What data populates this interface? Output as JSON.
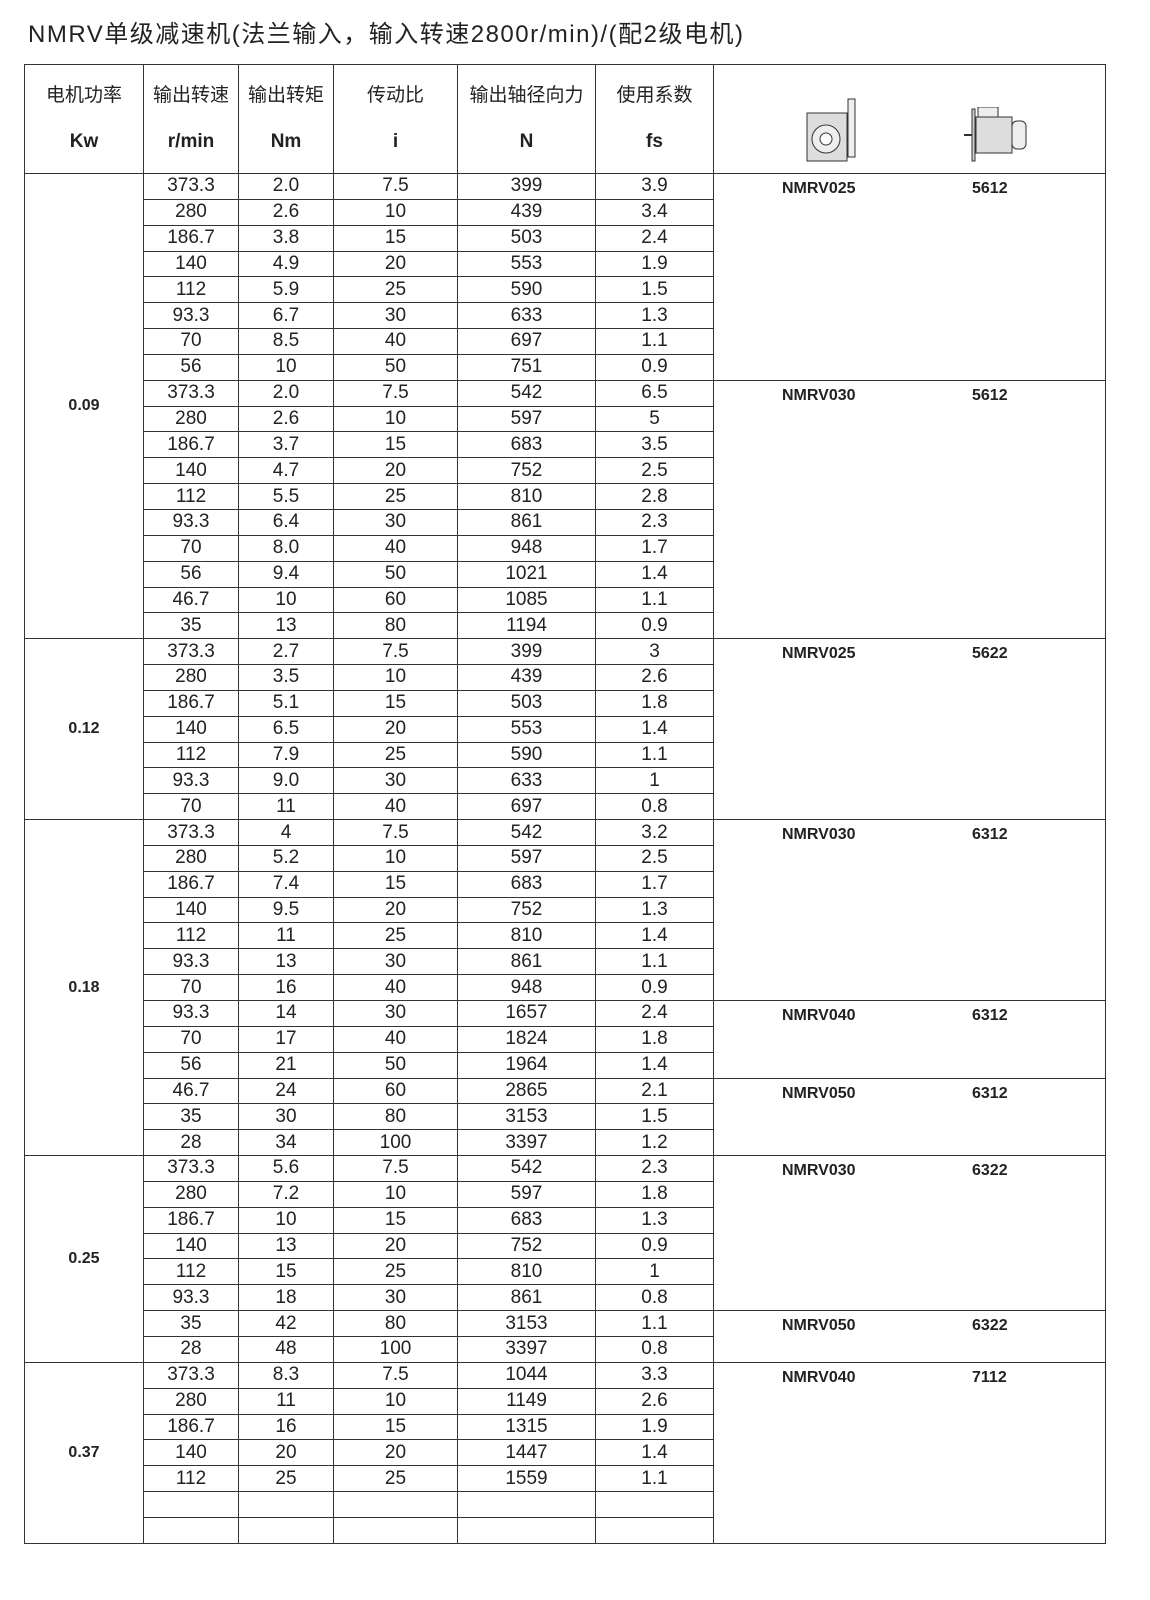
{
  "title": "NMRV单级减速机(法兰输入，输入转速2800r/min)/(配2级电机)",
  "headers": [
    {
      "cn": "电机功率",
      "unit": "Kw"
    },
    {
      "cn": "输出转速",
      "unit": "r/min"
    },
    {
      "cn": "输出转矩",
      "unit": "Nm"
    },
    {
      "cn": "传动比",
      "unit": "i"
    },
    {
      "cn": "输出轴径向力",
      "unit": "N"
    },
    {
      "cn": "使用系数",
      "unit": "fs"
    }
  ],
  "header_icons": [
    "worm-gearbox-icon",
    "electric-motor-icon"
  ],
  "groups": [
    {
      "power": "0.09",
      "models": [
        {
          "model": "NMRV025",
          "motor": "5612",
          "rows": [
            [
              "373.3",
              "2.0",
              "7.5",
              "399",
              "3.9"
            ],
            [
              "280",
              "2.6",
              "10",
              "439",
              "3.4"
            ],
            [
              "186.7",
              "3.8",
              "15",
              "503",
              "2.4"
            ],
            [
              "140",
              "4.9",
              "20",
              "553",
              "1.9"
            ],
            [
              "112",
              "5.9",
              "25",
              "590",
              "1.5"
            ],
            [
              "93.3",
              "6.7",
              "30",
              "633",
              "1.3"
            ],
            [
              "70",
              "8.5",
              "40",
              "697",
              "1.1"
            ],
            [
              "56",
              "10",
              "50",
              "751",
              "0.9"
            ]
          ]
        },
        {
          "model": "NMRV030",
          "motor": "5612",
          "rows": [
            [
              "373.3",
              "2.0",
              "7.5",
              "542",
              "6.5"
            ],
            [
              "280",
              "2.6",
              "10",
              "597",
              "5"
            ],
            [
              "186.7",
              "3.7",
              "15",
              "683",
              "3.5"
            ],
            [
              "140",
              "4.7",
              "20",
              "752",
              "2.5"
            ],
            [
              "112",
              "5.5",
              "25",
              "810",
              "2.8"
            ],
            [
              "93.3",
              "6.4",
              "30",
              "861",
              "2.3"
            ],
            [
              "70",
              "8.0",
              "40",
              "948",
              "1.7"
            ],
            [
              "56",
              "9.4",
              "50",
              "1021",
              "1.4"
            ],
            [
              "46.7",
              "10",
              "60",
              "1085",
              "1.1"
            ],
            [
              "35",
              "13",
              "80",
              "1194",
              "0.9"
            ]
          ]
        }
      ]
    },
    {
      "power": "0.12",
      "models": [
        {
          "model": "NMRV025",
          "motor": "5622",
          "rows": [
            [
              "373.3",
              "2.7",
              "7.5",
              "399",
              "3"
            ],
            [
              "280",
              "3.5",
              "10",
              "439",
              "2.6"
            ],
            [
              "186.7",
              "5.1",
              "15",
              "503",
              "1.8"
            ],
            [
              "140",
              "6.5",
              "20",
              "553",
              "1.4"
            ],
            [
              "112",
              "7.9",
              "25",
              "590",
              "1.1"
            ],
            [
              "93.3",
              "9.0",
              "30",
              "633",
              "1"
            ],
            [
              "70",
              "11",
              "40",
              "697",
              "0.8"
            ]
          ]
        }
      ]
    },
    {
      "power": "0.18",
      "models": [
        {
          "model": "NMRV030",
          "motor": "6312",
          "rows": [
            [
              "373.3",
              "4",
              "7.5",
              "542",
              "3.2"
            ],
            [
              "280",
              "5.2",
              "10",
              "597",
              "2.5"
            ],
            [
              "186.7",
              "7.4",
              "15",
              "683",
              "1.7"
            ],
            [
              "140",
              "9.5",
              "20",
              "752",
              "1.3"
            ],
            [
              "112",
              "11",
              "25",
              "810",
              "1.4"
            ],
            [
              "93.3",
              "13",
              "30",
              "861",
              "1.1"
            ],
            [
              "70",
              "16",
              "40",
              "948",
              "0.9"
            ]
          ]
        },
        {
          "model": "NMRV040",
          "motor": "6312",
          "rows": [
            [
              "93.3",
              "14",
              "30",
              "1657",
              "2.4"
            ],
            [
              "70",
              "17",
              "40",
              "1824",
              "1.8"
            ],
            [
              "56",
              "21",
              "50",
              "1964",
              "1.4"
            ]
          ]
        },
        {
          "model": "NMRV050",
          "motor": "6312",
          "rows": [
            [
              "46.7",
              "24",
              "60",
              "2865",
              "2.1"
            ],
            [
              "35",
              "30",
              "80",
              "3153",
              "1.5"
            ],
            [
              "28",
              "34",
              "100",
              "3397",
              "1.2"
            ]
          ]
        }
      ]
    },
    {
      "power": "0.25",
      "models": [
        {
          "model": "NMRV030",
          "motor": "6322",
          "rows": [
            [
              "373.3",
              "5.6",
              "7.5",
              "542",
              "2.3"
            ],
            [
              "280",
              "7.2",
              "10",
              "597",
              "1.8"
            ],
            [
              "186.7",
              "10",
              "15",
              "683",
              "1.3"
            ],
            [
              "140",
              "13",
              "20",
              "752",
              "0.9"
            ],
            [
              "112",
              "15",
              "25",
              "810",
              "1"
            ],
            [
              "93.3",
              "18",
              "30",
              "861",
              "0.8"
            ]
          ]
        },
        {
          "model": "NMRV050",
          "motor": "6322",
          "rows": [
            [
              "35",
              "42",
              "80",
              "3153",
              "1.1"
            ],
            [
              "28",
              "48",
              "100",
              "3397",
              "0.8"
            ]
          ]
        }
      ]
    },
    {
      "power": "0.37",
      "models": [
        {
          "model": "NMRV040",
          "motor": "7112",
          "rows": [
            [
              "373.3",
              "8.3",
              "7.5",
              "1044",
              "3.3"
            ],
            [
              "280",
              "11",
              "10",
              "1149",
              "2.6"
            ],
            [
              "186.7",
              "16",
              "15",
              "1315",
              "1.9"
            ],
            [
              "140",
              "20",
              "20",
              "1447",
              "1.4"
            ],
            [
              "112",
              "25",
              "25",
              "1559",
              "1.1"
            ],
            [
              "",
              "",
              "",
              "",
              ""
            ],
            [
              "",
              "",
              "",
              "",
              ""
            ]
          ]
        }
      ]
    }
  ]
}
